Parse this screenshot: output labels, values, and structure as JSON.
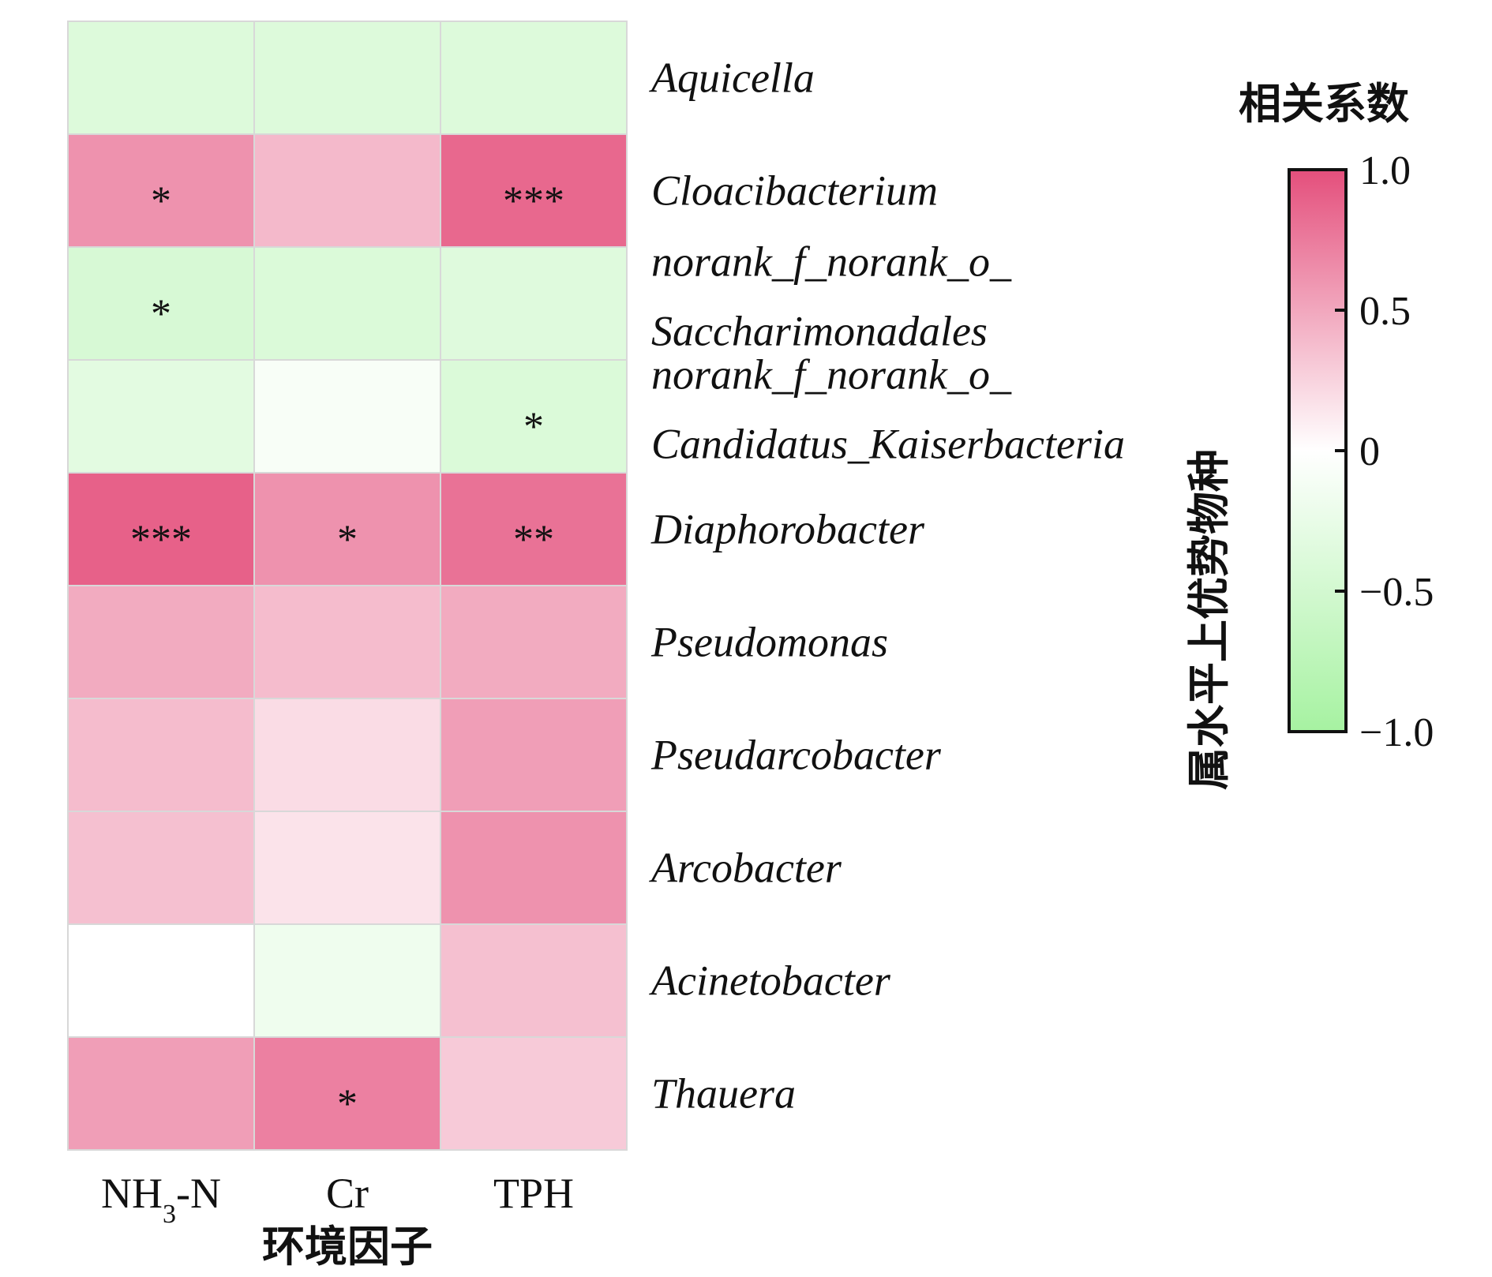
{
  "chart_data": {
    "type": "heatmap",
    "columns": [
      "NH3-N",
      "Cr",
      "TPH"
    ],
    "rows": [
      [
        "Aquicella"
      ],
      [
        "Cloacibacterium"
      ],
      [
        "norank_f_norank_o_",
        "Saccharimonadales"
      ],
      [
        "norank_f_norank_o_",
        "Candidatus_Kaiserbacteria"
      ],
      [
        "Diaphorobacter"
      ],
      [
        "Pseudomonas"
      ],
      [
        "Pseudarcobacter"
      ],
      [
        "Arcobacter"
      ],
      [
        "Acinetobacter"
      ],
      [
        "Thauera"
      ]
    ],
    "values": [
      [
        -0.38,
        -0.38,
        -0.38
      ],
      [
        0.62,
        0.4,
        0.86
      ],
      [
        -0.45,
        -0.4,
        -0.36
      ],
      [
        -0.32,
        -0.08,
        -0.4
      ],
      [
        0.9,
        0.62,
        0.8
      ],
      [
        0.48,
        0.38,
        0.48
      ],
      [
        0.38,
        0.2,
        0.55
      ],
      [
        0.36,
        0.16,
        0.62
      ],
      [
        0.0,
        -0.18,
        0.36
      ],
      [
        0.55,
        0.72,
        0.3
      ]
    ],
    "significance": [
      [
        "",
        "",
        ""
      ],
      [
        "*",
        "",
        "***"
      ],
      [
        "*",
        "",
        ""
      ],
      [
        "",
        "",
        "*"
      ],
      [
        "***",
        "*",
        "**"
      ],
      [
        "",
        "",
        ""
      ],
      [
        "",
        "",
        ""
      ],
      [
        "",
        "",
        ""
      ],
      [
        "",
        "",
        ""
      ],
      [
        "",
        "*",
        ""
      ]
    ],
    "xlabel": "环境因子",
    "ylabel": "属水平上优势物种",
    "legend_title": "相关系数",
    "colorbar_ticks": [
      "1.0",
      "0.5",
      "0",
      "−0.5",
      "−1.0"
    ],
    "colorbar_tick_values": [
      1.0,
      0.5,
      0,
      -0.5,
      -1.0
    ],
    "vrange": [
      -1.0,
      1.0
    ],
    "colors": {
      "negative": "#a6f2a1",
      "zero": "#ffffff",
      "positive": "#e44f7c"
    }
  }
}
